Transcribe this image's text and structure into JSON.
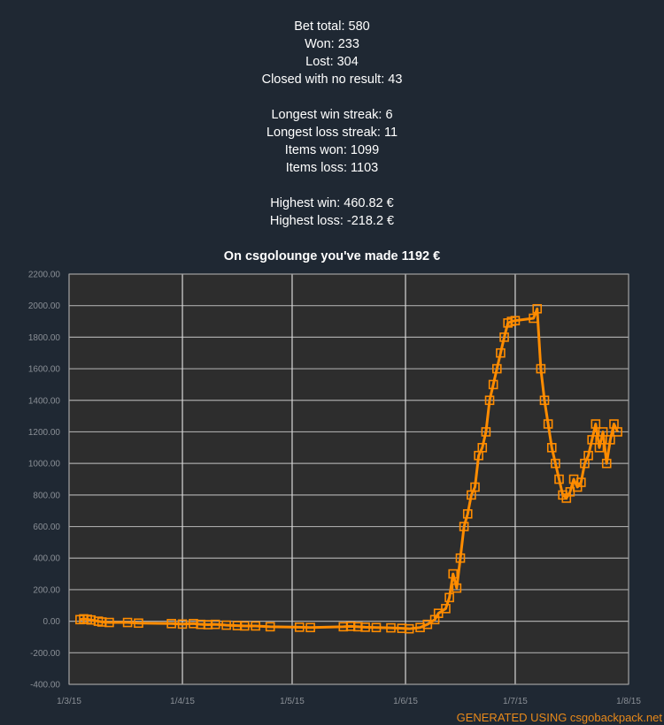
{
  "stats": {
    "bet_total": "Bet total: 580",
    "won": "Won: 233",
    "lost": "Lost: 304",
    "closed": "Closed with no result: 43",
    "longest_win": "Longest win streak: 6",
    "longest_loss": "Longest loss streak: 11",
    "items_won": "Items won: 1099",
    "items_loss": "Items loss: 1103",
    "highest_win": "Highest win: 460.82 €",
    "highest_loss": "Highest loss: -218.2 €"
  },
  "footer": "GENERATED USING csgobackpack.net",
  "colors": {
    "background": "#1f2833",
    "plot_bg": "#2d2d2d",
    "series": "#ff8c00",
    "grid": "#bbbbbb",
    "accent": "#e8891a"
  },
  "chart_data": {
    "type": "line",
    "title": "On csgolounge you've made 1192 €",
    "xlabel": "",
    "ylabel": "",
    "x_tick_labels": [
      "1/3/15",
      "1/4/15",
      "1/5/15",
      "1/6/15",
      "1/7/15",
      "1/8/15"
    ],
    "y_tick_labels": [
      "2200.00",
      "2000.00",
      "1800.00",
      "1600.00",
      "1400.00",
      "1200.00",
      "1000.00",
      "800.00",
      "600.00",
      "400.00",
      "200.00",
      "0.00",
      "-200.00",
      "-400.00"
    ],
    "ylim": [
      -400,
      2200
    ],
    "xlim": [
      "2015-03-01",
      "2015-08-01"
    ],
    "grid": true,
    "marker": "square",
    "series": [
      {
        "x": [
          "2015-03-04",
          "2015-03-05",
          "2015-03-06",
          "2015-03-07",
          "2015-03-09",
          "2015-03-10",
          "2015-03-12",
          "2015-03-17",
          "2015-03-20",
          "2015-03-29",
          "2015-04-01",
          "2015-04-04",
          "2015-04-06",
          "2015-04-08",
          "2015-04-10",
          "2015-04-13",
          "2015-04-16",
          "2015-04-18",
          "2015-04-21",
          "2015-04-25",
          "2015-05-03",
          "2015-05-06",
          "2015-05-15",
          "2015-05-17",
          "2015-05-19",
          "2015-05-21",
          "2015-05-24",
          "2015-05-28",
          "2015-05-31",
          "2015-06-02",
          "2015-06-05",
          "2015-06-07",
          "2015-06-09",
          "2015-06-10",
          "2015-06-12",
          "2015-06-13",
          "2015-06-14",
          "2015-06-15",
          "2015-06-16",
          "2015-06-17",
          "2015-06-18",
          "2015-06-19",
          "2015-06-20",
          "2015-06-21",
          "2015-06-22",
          "2015-06-23",
          "2015-06-24",
          "2015-06-25",
          "2015-06-26",
          "2015-06-27",
          "2015-06-28",
          "2015-06-29",
          "2015-06-30",
          "2015-07-01",
          "2015-07-06",
          "2015-07-07",
          "2015-07-08",
          "2015-07-09",
          "2015-07-10",
          "2015-07-11",
          "2015-07-12",
          "2015-07-13",
          "2015-07-14",
          "2015-07-15",
          "2015-07-16",
          "2015-07-17",
          "2015-07-18",
          "2015-07-19",
          "2015-07-20",
          "2015-07-21",
          "2015-07-22",
          "2015-07-23",
          "2015-07-24",
          "2015-07-25",
          "2015-07-26",
          "2015-07-27",
          "2015-07-28",
          "2015-07-29"
        ],
        "y": [
          10,
          15,
          12,
          8,
          0,
          -5,
          -8,
          -8,
          -12,
          -15,
          -18,
          -15,
          -20,
          -22,
          -20,
          -25,
          -28,
          -30,
          -30,
          -35,
          -38,
          -40,
          -35,
          -32,
          -35,
          -38,
          -40,
          -42,
          -45,
          -48,
          -40,
          -20,
          10,
          50,
          80,
          150,
          300,
          210,
          400,
          600,
          680,
          800,
          850,
          1050,
          1100,
          1200,
          1400,
          1500,
          1600,
          1700,
          1800,
          1890,
          1900,
          1905,
          1920,
          1980,
          1600,
          1400,
          1250,
          1100,
          1000,
          900,
          800,
          780,
          820,
          900,
          850,
          880,
          1000,
          1050,
          1150,
          1250,
          1100,
          1200,
          1000,
          1150,
          1250,
          1200
        ]
      }
    ]
  }
}
